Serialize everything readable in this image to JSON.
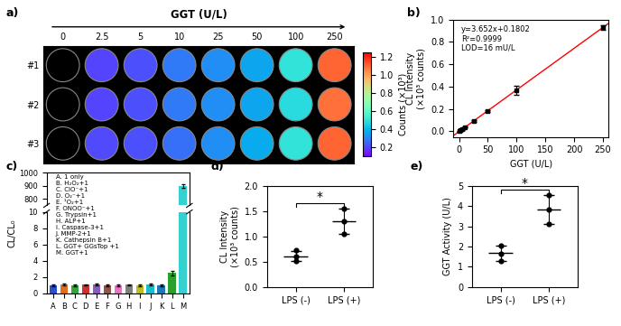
{
  "chart_data": [
    {
      "panel": "a)",
      "type": "heatmap",
      "title": "GGT (U/L)",
      "x": [
        0,
        2.5,
        5,
        10,
        25,
        50,
        100,
        250
      ],
      "rows": [
        "#1",
        "#2",
        "#3"
      ],
      "cells": [
        [
          0.05,
          0.2,
          0.22,
          0.28,
          0.32,
          0.36,
          0.5,
          1.1
        ],
        [
          0.05,
          0.2,
          0.22,
          0.28,
          0.32,
          0.36,
          0.48,
          1.08
        ],
        [
          0.05,
          0.21,
          0.22,
          0.27,
          0.32,
          0.37,
          0.5,
          1.1
        ]
      ],
      "colorbar": {
        "label": "Counts (×10³)",
        "range": [
          0.1,
          1.25
        ],
        "ticks": [
          0.2,
          0.4,
          0.6,
          0.8,
          {
            "value": 1.0,
            "label": "1.0"
          },
          1.2
        ]
      }
    },
    {
      "panel": "b)",
      "type": "scatter",
      "xlabel": "GGT (U/L)",
      "ylabel": "CL Intensity\n(×10³ counts)",
      "x": [
        0,
        2.5,
        5,
        10,
        25,
        50,
        100,
        250
      ],
      "values": [
        0.0,
        0.009,
        0.018,
        0.037,
        0.091,
        0.18,
        0.37,
        0.93
      ],
      "errors": [
        0.003,
        0.003,
        0.003,
        0.004,
        0.008,
        0.01,
        0.04,
        0.02
      ],
      "xlim": [
        -10,
        260
      ],
      "xticks": [
        0,
        50,
        100,
        150,
        200,
        250
      ],
      "ylim": [
        -0.05,
        1.0
      ],
      "yticks": [
        {
          "value": 0.0,
          "label": "0.0"
        },
        0.2,
        0.4,
        0.6,
        0.8,
        {
          "value": 1.0,
          "label": "1.0"
        }
      ],
      "annotations": [
        "y=3.652x+0.1802",
        "R²=0.9999",
        "LOD=16 mU/L"
      ]
    },
    {
      "panel": "c)",
      "type": "bar",
      "ylabel": "CL/CL₀",
      "categories": [
        "A",
        "B",
        "C",
        "D",
        "E",
        "F",
        "G",
        "H",
        "I",
        "J",
        "K",
        "L",
        "M"
      ],
      "values": [
        1.0,
        1.1,
        1.0,
        1.05,
        1.1,
        1.0,
        1.0,
        1.05,
        1.0,
        1.1,
        1.0,
        2.5,
        900
      ],
      "errors": [
        0.1,
        0.1,
        0.1,
        0.1,
        0.1,
        0.1,
        0.1,
        0.1,
        0.1,
        0.1,
        0.1,
        0.3,
        15
      ],
      "colors": [
        "#2b50c8",
        "#e07020",
        "#3aa040",
        "#d03030",
        "#8a5cc0",
        "#8c564b",
        "#e377c2",
        "#7f7f7f",
        "#bcbd22",
        "#17becf",
        "#1f77b4",
        "#2ca02c",
        "#35d0d0"
      ],
      "segments": [
        {
          "ylim": [
            0,
            10
          ],
          "yticks": [
            0,
            2,
            4,
            6,
            8,
            10
          ]
        },
        {
          "ylim": [
            750,
            1000
          ],
          "yticks": [
            800,
            900,
            1000
          ]
        }
      ],
      "annotations": [
        "A. 1 only",
        "B. H₂O₂+1",
        "C. ClO⁻+1",
        "D. O₂⁻+1",
        "E. ¹O₂+1",
        "F. ONOO⁻+1",
        "G. Trypsin+1",
        "H. ALP+1",
        "I. Caspase-3+1",
        "J. MMP-2+1",
        "K. Cathepsin B+1",
        "L. GGT+ GGsTop +1",
        "M. GGT+1"
      ]
    },
    {
      "panel": "d)",
      "type": "scatter",
      "ylabel": "CL Intensity\n(×10³ counts)",
      "categories": [
        "LPS (-)",
        "LPS (+)"
      ],
      "values": [
        [
          0.72,
          0.6,
          0.52
        ],
        [
          1.55,
          1.3,
          1.05
        ]
      ],
      "means": [
        0.61,
        1.3
      ],
      "errors": [
        0.1,
        0.25
      ],
      "ylim": [
        0,
        2.0
      ],
      "yticks": [
        {
          "value": 0,
          "label": "0.0"
        },
        0.5,
        {
          "value": 1.0,
          "label": "1.0"
        },
        1.5,
        {
          "value": 2.0,
          "label": "2.0"
        }
      ],
      "annotation": "*"
    },
    {
      "panel": "e)",
      "type": "scatter",
      "ylabel": "GGT Activity (U/L)",
      "categories": [
        "LPS (-)",
        "LPS (+)"
      ],
      "values": [
        [
          2.05,
          1.65,
          1.3
        ],
        [
          4.55,
          3.85,
          3.1
        ]
      ],
      "means": [
        1.67,
        3.83
      ],
      "errors": [
        0.38,
        0.73
      ],
      "ylim": [
        0,
        5
      ],
      "yticks": [
        0,
        1,
        2,
        3,
        4,
        5
      ],
      "annotation": "*"
    }
  ]
}
